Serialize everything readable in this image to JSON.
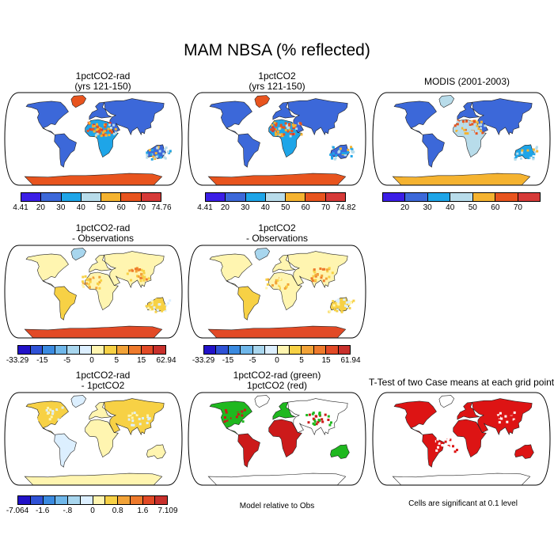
{
  "figure": {
    "title": "MAM NBSA (% reflected)",
    "panels": [
      {
        "id": "p1",
        "title": "1pctCO2-rad\n(yrs 121-150)",
        "scheme": "abs",
        "variant": "model"
      },
      {
        "id": "p2",
        "title": "1pctCO2\n(yrs 121-150)",
        "scheme": "abs",
        "variant": "model"
      },
      {
        "id": "p3",
        "title": "MODIS (2001-2003)",
        "scheme": "abs",
        "variant": "obs"
      },
      {
        "id": "p4",
        "title": "1pctCO2-rad\n- Observations",
        "scheme": "diff",
        "variant": "diff"
      },
      {
        "id": "p5",
        "title": "1pctCO2\n- Observations",
        "scheme": "diff",
        "variant": "diff"
      },
      {
        "id": "p6",
        "title": "1pctCO2-rad\n- 1pctCO2",
        "scheme": "diff",
        "variant": "case"
      },
      {
        "id": "p7",
        "title": "1pctCO2-rad (green)\n1pctCO2 (red)",
        "scheme": "rg",
        "variant": "rg"
      },
      {
        "id": "p8",
        "title": "T-Test of two Case means at each grid point",
        "scheme": "sig",
        "variant": "sig"
      }
    ],
    "colorbars": [
      {
        "id": "cb1",
        "labels": [
          "4.41",
          "20",
          "30",
          "40",
          "50",
          "60",
          "70",
          "74.76"
        ]
      },
      {
        "id": "cb2",
        "labels": [
          "4.41",
          "20",
          "30",
          "40",
          "50",
          "60",
          "70",
          "74.82"
        ]
      },
      {
        "id": "cb3",
        "labels": [
          "",
          "20",
          "30",
          "40",
          "50",
          "60",
          "70",
          ""
        ]
      },
      {
        "id": "cb4",
        "labels": [
          "-33.29",
          "",
          "-15",
          "",
          "-5",
          "",
          "0",
          "",
          "5",
          "",
          "15",
          "",
          "62.94"
        ]
      },
      {
        "id": "cb5",
        "labels": [
          "-33.29",
          "",
          "-15",
          "",
          "-5",
          "",
          "0",
          "",
          "5",
          "",
          "15",
          "",
          "61.94"
        ]
      },
      {
        "id": "cb6",
        "labels": [
          "-7.064",
          "",
          "-1.6",
          "",
          "-.8",
          "",
          "0",
          "",
          "0.8",
          "",
          "1.6",
          "",
          "7.109"
        ]
      }
    ],
    "notes": {
      "model_relative": "Model relative to Obs",
      "significance": "Cells are significant at 0.1 level"
    }
  },
  "palettes": {
    "abs": [
      "#3b1ee6",
      "#3c68d9",
      "#1ea5e8",
      "#b8dcea",
      "#f5b330",
      "#e8541e",
      "#d63a38"
    ],
    "diff": [
      "#2212c8",
      "#2f52d6",
      "#3a8ae0",
      "#6fb7ea",
      "#a8d6ee",
      "#dcefff",
      "#fff5b0",
      "#f7d145",
      "#f2a338",
      "#ee7a2c",
      "#e24a26",
      "#c8302c"
    ]
  }
}
